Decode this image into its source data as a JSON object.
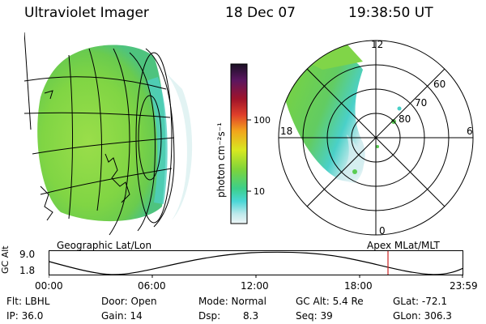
{
  "header": {
    "instrument": "Ultraviolet Imager",
    "date": "18 Dec 07",
    "time": "19:38:50 UT"
  },
  "colorbar": {
    "unit_label": "photon cm⁻²s⁻¹",
    "ticks": [
      "100",
      "10"
    ]
  },
  "geo_panel": {
    "caption": "Geographic Lat/Lon"
  },
  "polar_panel": {
    "caption": "Apex  MLat/MLT",
    "mlt_labels": [
      "12",
      "18",
      "6",
      "0"
    ],
    "mlat_labels": [
      "60",
      "70",
      "80"
    ]
  },
  "altitude_plot": {
    "ylabel": "GC Alt",
    "yticks": [
      "9.0",
      "1.8"
    ],
    "xticks": [
      "00:00",
      "06:00",
      "12:00",
      "18:00",
      "23:59"
    ],
    "marker_time": "19:38:50"
  },
  "status": {
    "flt": "Flt: LBHL",
    "ip": "IP: 36.0",
    "door": "Door: Open",
    "gain": "Gain: 14",
    "mode": "Mode: Normal",
    "dsp_label": "Dsp:",
    "dsp_value": "8.3",
    "gc_alt": "GC Alt: 5.4 Re",
    "seq": "Seq: 39",
    "glat": "GLat: -72.1",
    "glon": "GLon: 306.3"
  },
  "colors": {
    "marker": "#cc2222",
    "aurora_green": "#6cd23a",
    "aurora_cyan": "#3fd0c8"
  }
}
